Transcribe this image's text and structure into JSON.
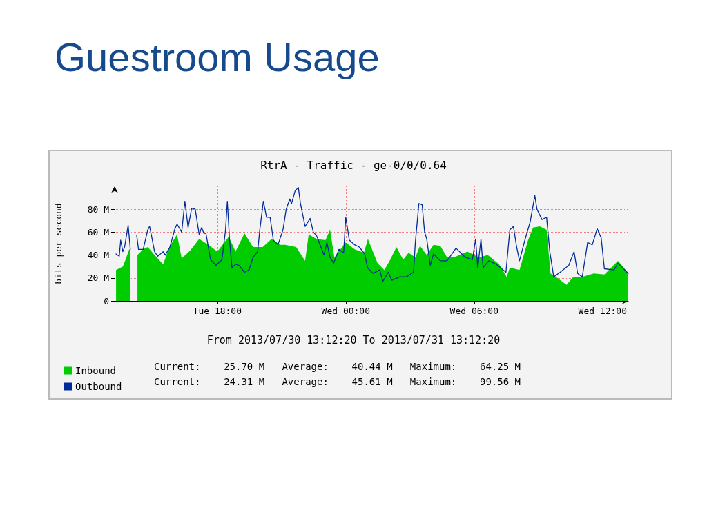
{
  "chart_data": {
    "type": "area",
    "title": "Guestroom Usage",
    "subtitle": "RtrA - Traffic - ge-0/0/0.64",
    "ylabel": "bits per second",
    "xlim": [
      "2013-07-30T13:12",
      "2013-07-31T13:12"
    ],
    "xticks": [
      {
        "value": "2013-07-30T18:00",
        "label": "Tue 18:00"
      },
      {
        "value": "2013-07-31T00:00",
        "label": "Wed 00:00"
      },
      {
        "value": "2013-07-31T06:00",
        "label": "Wed 06:00"
      },
      {
        "value": "2013-07-31T12:00",
        "label": "Wed 12:00"
      }
    ],
    "ylim": [
      0,
      100
    ],
    "yticks": [
      0,
      {
        "value": 20,
        "label": "20 M"
      },
      {
        "value": 40,
        "label": "40 M"
      },
      {
        "value": 60,
        "label": "60 M"
      },
      {
        "value": 80,
        "label": "80 M"
      }
    ],
    "grid": true,
    "legend": "bottom left",
    "marker": "none",
    "line_style": "solid",
    "annotations": [
      "From 2013/07/30 13:12:20 To 2013/07/31 13:12:20",
      "Current:    25.70 M   Average:    40.44 M   Maximum:    64.25 M",
      "Current:    24.31 M   Average:    45.61 M   Maximum:    99.56 M"
    ],
    "series": [
      {
        "name": "Inbound",
        "color": "#00cc00",
        "x": [
          "2013-07-30T13:16",
          "2013-07-30T13:35",
          "2013-07-30T13:44",
          "2013-07-30T13:53",
          "2013-07-30T13:56",
          "2013-07-30T14:03",
          "2013-07-30T14:16",
          "2013-07-30T14:32",
          "2013-07-30T14:45",
          "2013-07-30T15:04",
          "2013-07-30T15:28",
          "2013-07-30T15:47",
          "2013-07-30T16:07",
          "2013-07-30T16:20",
          "2013-07-30T16:44",
          "2013-07-30T17:09",
          "2013-07-30T17:35",
          "2013-07-30T18:00",
          "2013-07-30T18:32",
          "2013-07-30T18:51",
          "2013-07-30T19:16",
          "2013-07-30T19:40",
          "2013-07-30T20:07",
          "2013-07-30T20:32",
          "2013-07-30T20:56",
          "2013-07-30T21:10",
          "2013-07-30T21:41",
          "2013-07-30T22:06",
          "2013-07-30T22:16",
          "2013-07-30T22:38",
          "2013-07-30T23:03",
          "2013-07-30T23:16",
          "2013-07-30T23:28",
          "2013-07-31T00:00",
          "2013-07-31T00:25",
          "2013-07-31T00:51",
          "2013-07-31T01:02",
          "2013-07-31T01:29",
          "2013-07-31T01:48",
          "2013-07-31T02:03",
          "2013-07-31T02:22",
          "2013-07-31T02:41",
          "2013-07-31T02:56",
          "2013-07-31T03:15",
          "2013-07-31T03:28",
          "2013-07-31T03:47",
          "2013-07-31T04:06",
          "2013-07-31T04:25",
          "2013-07-31T04:44",
          "2013-07-31T05:03",
          "2013-07-31T05:41",
          "2013-07-31T06:13",
          "2013-07-31T06:38",
          "2013-07-31T07:10",
          "2013-07-31T07:31",
          "2013-07-31T07:40",
          "2013-07-31T08:07",
          "2013-07-31T08:31",
          "2013-07-31T08:45",
          "2013-07-31T09:04",
          "2013-07-31T09:23",
          "2013-07-31T09:34",
          "2013-07-31T09:53",
          "2013-07-31T10:19",
          "2013-07-31T10:38",
          "2013-07-31T11:03",
          "2013-07-31T11:35",
          "2013-07-31T12:05",
          "2013-07-31T12:43",
          "2013-07-31T13:10"
        ],
        "values": [
          27,
          30,
          37,
          45,
          45,
          null,
          40,
          45,
          47,
          40,
          32,
          48,
          58,
          37,
          44,
          54,
          49,
          43,
          56,
          43,
          59,
          47,
          47,
          54,
          49,
          49,
          47,
          35,
          58,
          54,
          53,
          62,
          38,
          51,
          45,
          42,
          54,
          33,
          27,
          35,
          47,
          36,
          42,
          38,
          48,
          40,
          49,
          48,
          38,
          38,
          43,
          38,
          40,
          32,
          21,
          29,
          27,
          53,
          64,
          65,
          62,
          24,
          20,
          14,
          21,
          21,
          24,
          23,
          35,
          25
        ]
      },
      {
        "name": "Outbound",
        "type": "line",
        "color": "#002a97",
        "x": [
          "2013-07-30T13:16",
          "2013-07-30T13:25",
          "2013-07-30T13:29",
          "2013-07-30T13:35",
          "2013-07-30T13:40",
          "2013-07-30T13:50",
          "2013-07-30T13:56",
          "2013-07-30T14:03",
          "2013-07-30T14:14",
          "2013-07-30T14:19",
          "2013-07-30T14:32",
          "2013-07-30T14:45",
          "2013-07-30T14:50",
          "2013-07-30T14:56",
          "2013-07-30T15:04",
          "2013-07-30T15:13",
          "2013-07-30T15:28",
          "2013-07-30T15:34",
          "2013-07-30T15:47",
          "2013-07-30T16:01",
          "2013-07-30T16:07",
          "2013-07-30T16:20",
          "2013-07-30T16:29",
          "2013-07-30T16:38",
          "2013-07-30T16:48",
          "2013-07-30T16:58",
          "2013-07-30T17:09",
          "2013-07-30T17:16",
          "2013-07-30T17:22",
          "2013-07-30T17:28",
          "2013-07-30T17:41",
          "2013-07-30T17:56",
          "2013-07-30T18:13",
          "2013-07-30T18:23",
          "2013-07-30T18:28",
          "2013-07-30T18:34",
          "2013-07-30T18:41",
          "2013-07-30T18:51",
          "2013-07-30T19:01",
          "2013-07-30T19:16",
          "2013-07-30T19:29",
          "2013-07-30T19:40",
          "2013-07-30T19:53",
          "2013-07-30T19:59",
          "2013-07-30T20:09",
          "2013-07-30T20:18",
          "2013-07-30T20:28",
          "2013-07-30T20:37",
          "2013-07-30T20:50",
          "2013-07-30T21:04",
          "2013-07-30T21:13",
          "2013-07-30T21:23",
          "2013-07-30T21:28",
          "2013-07-30T21:38",
          "2013-07-30T21:47",
          "2013-07-30T21:53",
          "2013-07-30T22:06",
          "2013-07-30T22:20",
          "2013-07-30T22:29",
          "2013-07-30T22:38",
          "2013-07-30T22:48",
          "2013-07-30T22:59",
          "2013-07-30T23:07",
          "2013-07-30T23:16",
          "2013-07-30T23:26",
          "2013-07-30T23:41",
          "2013-07-30T23:54",
          "2013-07-31T00:00",
          "2013-07-31T00:10",
          "2013-07-31T00:25",
          "2013-07-31T00:38",
          "2013-07-31T00:53",
          "2013-07-31T01:01",
          "2013-07-31T01:16",
          "2013-07-31T01:35",
          "2013-07-31T01:44",
          "2013-07-31T01:59",
          "2013-07-31T02:09",
          "2013-07-31T02:32",
          "2013-07-31T02:50",
          "2013-07-31T03:10",
          "2013-07-31T03:15",
          "2013-07-31T03:25",
          "2013-07-31T03:34",
          "2013-07-31T03:41",
          "2013-07-31T03:47",
          "2013-07-31T03:57",
          "2013-07-31T04:06",
          "2013-07-31T04:25",
          "2013-07-31T04:44",
          "2013-07-31T05:09",
          "2013-07-31T05:19",
          "2013-07-31T05:35",
          "2013-07-31T05:55",
          "2013-07-31T06:04",
          "2013-07-31T06:10",
          "2013-07-31T06:19",
          "2013-07-31T06:25",
          "2013-07-31T06:41",
          "2013-07-31T07:02",
          "2013-07-31T07:29",
          "2013-07-31T07:40",
          "2013-07-31T07:50",
          "2013-07-31T07:59",
          "2013-07-31T08:07",
          "2013-07-31T08:22",
          "2013-07-31T08:37",
          "2013-07-31T08:50",
          "2013-07-31T08:56",
          "2013-07-31T09:10",
          "2013-07-31T09:23",
          "2013-07-31T09:32",
          "2013-07-31T09:43",
          "2013-07-31T10:01",
          "2013-07-31T10:25",
          "2013-07-31T10:40",
          "2013-07-31T10:50",
          "2013-07-31T11:03",
          "2013-07-31T11:18",
          "2013-07-31T11:31",
          "2013-07-31T11:45",
          "2013-07-31T11:56",
          "2013-07-31T12:05",
          "2013-07-31T12:32",
          "2013-07-31T12:43",
          "2013-07-31T13:02",
          "2013-07-31T13:12"
        ],
        "values": [
          41,
          39,
          53,
          43,
          47,
          66,
          45,
          null,
          57,
          45,
          45,
          62,
          65,
          56,
          43,
          39,
          43,
          40,
          47,
          63,
          67,
          60,
          87,
          64,
          81,
          80,
          58,
          64,
          59,
          59,
          36,
          31,
          36,
          62,
          87,
          54,
          29,
          32,
          31,
          25,
          27,
          38,
          43,
          62,
          87,
          73,
          73,
          53,
          49,
          62,
          80,
          89,
          85,
          96,
          99,
          85,
          65,
          72,
          60,
          57,
          49,
          40,
          51,
          38,
          33,
          45,
          42,
          73,
          53,
          49,
          47,
          41,
          29,
          24,
          27,
          17,
          25,
          18,
          21,
          21,
          25,
          51,
          85,
          84,
          60,
          54,
          31,
          41,
          35,
          35,
          46,
          43,
          38,
          36,
          54,
          29,
          54,
          29,
          35,
          32,
          25,
          62,
          65,
          47,
          35,
          53,
          69,
          92,
          80,
          71,
          73,
          43,
          21,
          25,
          31,
          43,
          24,
          21,
          51,
          49,
          63,
          55,
          28,
          27,
          33,
          27,
          24
        ]
      }
    ]
  }
}
